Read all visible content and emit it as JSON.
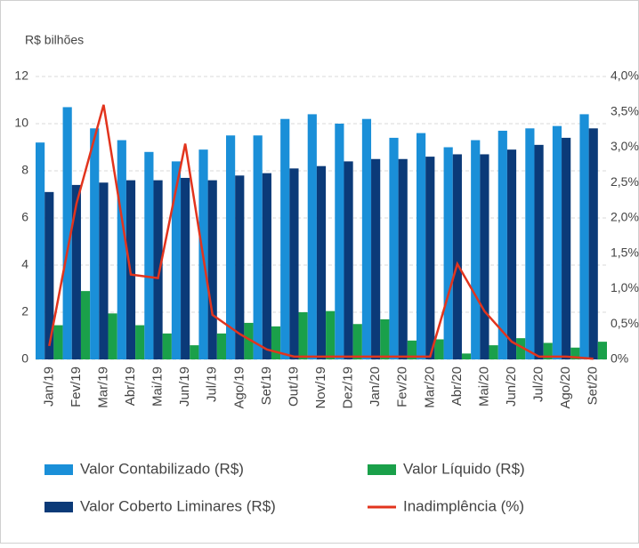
{
  "chart_data": {
    "type": "bar_line",
    "y_axis_label": "R$ bilhões",
    "categories": [
      "Jan/19",
      "Fev/19",
      "Mar/19",
      "Abr/19",
      "Mai/19",
      "Jun/19",
      "Jul/19",
      "Ago/19",
      "Set/19",
      "Out/19",
      "Nov/19",
      "Dez/19",
      "Jan/20",
      "Fev/20",
      "Mar/20",
      "Abr/20",
      "Mai/20",
      "Jun/20",
      "Jul/20",
      "Ago/20",
      "Set/20"
    ],
    "series": [
      {
        "name": "Valor Contabilizado (R$)",
        "type": "bar",
        "color": "#1a8fd8",
        "values": [
          9.2,
          10.7,
          9.8,
          9.3,
          8.8,
          8.4,
          8.9,
          9.5,
          9.5,
          10.2,
          10.4,
          10.0,
          10.2,
          9.4,
          9.6,
          9.0,
          9.3,
          9.7,
          9.8,
          9.9,
          10.4
        ]
      },
      {
        "name": "Valor Coberto Liminares (R$)",
        "type": "bar",
        "color": "#0b3a78",
        "values": [
          7.1,
          7.4,
          7.5,
          7.6,
          7.6,
          7.7,
          7.6,
          7.8,
          7.9,
          8.1,
          8.2,
          8.4,
          8.5,
          8.5,
          8.6,
          8.7,
          8.7,
          8.9,
          9.1,
          9.4,
          9.8
        ]
      },
      {
        "name": "Valor Líquido (R$)",
        "type": "bar",
        "color": "#1aa04a",
        "values": [
          1.45,
          2.9,
          1.95,
          1.45,
          1.1,
          0.6,
          1.1,
          1.55,
          1.4,
          2.0,
          2.05,
          1.5,
          1.7,
          0.8,
          0.85,
          0.25,
          0.6,
          0.9,
          0.7,
          0.5,
          0.75
        ]
      },
      {
        "name": "Inadimplência (%)",
        "type": "line",
        "axis": "y2",
        "color": "#e2341d",
        "values": [
          0.19,
          2.2,
          3.6,
          1.2,
          1.15,
          3.05,
          0.63,
          0.36,
          0.14,
          0.04,
          0.04,
          0.04,
          0.04,
          0.04,
          0.04,
          1.35,
          0.68,
          0.25,
          0.04,
          0.04,
          0.01
        ]
      }
    ],
    "ylim": [
      0,
      12
    ],
    "yticks": [
      0,
      2,
      4,
      6,
      8,
      10,
      12
    ],
    "y2lim": [
      0,
      4
    ],
    "y2ticks": [
      {
        "value": 0,
        "label": "0%"
      },
      {
        "value": 0.5,
        "label": "0,5%"
      },
      {
        "value": 1,
        "label": "1,0%"
      },
      {
        "value": 1.5,
        "label": "1,5%"
      },
      {
        "value": 2,
        "label": "2,0%"
      },
      {
        "value": 2.5,
        "label": "2,5%"
      },
      {
        "value": 3,
        "label": "3,0%"
      },
      {
        "value": 3.5,
        "label": "3,5%"
      },
      {
        "value": 4,
        "label": "4,0%"
      }
    ],
    "grid": true,
    "legend": "bottom"
  }
}
